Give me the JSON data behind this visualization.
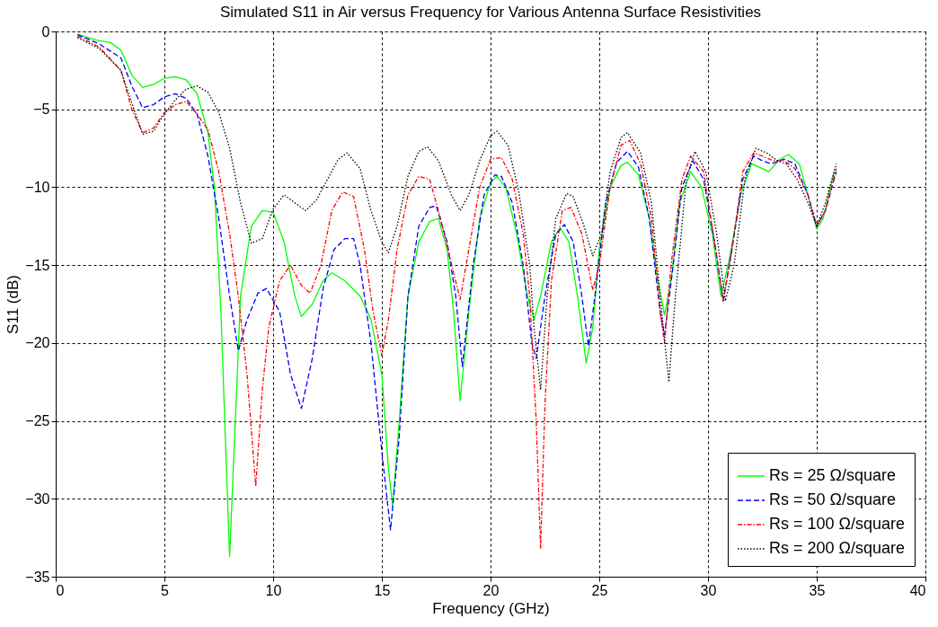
{
  "chart_data": {
    "type": "line",
    "title": "Simulated S11 in Air versus Frequency for Various Antenna Surface Resistivities",
    "xlabel": "Frequency (GHz)",
    "ylabel": "S11 (dB)",
    "xlim": [
      0,
      40
    ],
    "xticks": [
      0,
      5,
      10,
      15,
      20,
      25,
      30,
      35,
      40
    ],
    "ylim": [
      -35,
      0
    ],
    "yticks": [
      -35,
      -30,
      -25,
      -20,
      -15,
      -10,
      -5,
      0
    ],
    "grid": true,
    "legend": "bottom right",
    "marker": "none",
    "series": [
      {
        "name": "Rs = 25 Ω/square",
        "color": "#00ff00",
        "line_style": "solid",
        "x": [
          1,
          2,
          2.5,
          3,
          3.5,
          4,
          4.5,
          5,
          5.5,
          6,
          6.5,
          7,
          7.3,
          7.6,
          7.8,
          8.0,
          8.2,
          8.5,
          9,
          9.5,
          10,
          10.5,
          11,
          11.3,
          11.8,
          12.3,
          12.7,
          13.3,
          14,
          14.5,
          15,
          15.3,
          15.5,
          15.8,
          16.2,
          16.7,
          17.2,
          17.6,
          18,
          18.3,
          18.6,
          19,
          19.5,
          20,
          20.3,
          20.7,
          21.2,
          21.7,
          22,
          22.3,
          22.8,
          23.2,
          23.6,
          24,
          24.4,
          24.7,
          25,
          25.5,
          26,
          26.3,
          26.8,
          27.3,
          27.7,
          28,
          28.3,
          28.7,
          29.2,
          29.7,
          30.2,
          30.6,
          31,
          31.5,
          32,
          32.5,
          32.8,
          33.3,
          33.7,
          34.2,
          34.6,
          35,
          35.3,
          35.8
        ],
        "values": [
          -0.2,
          -0.6,
          -0.7,
          -1.2,
          -2.8,
          -3.6,
          -3.4,
          -3.0,
          -2.9,
          -3.1,
          -4.0,
          -6.5,
          -10,
          -18,
          -26,
          -33.7,
          -27,
          -17,
          -12.5,
          -11.5,
          -11.6,
          -13.5,
          -17,
          -18.3,
          -17.5,
          -16,
          -15.5,
          -16,
          -17,
          -18.5,
          -22,
          -28,
          -30.5,
          -25,
          -17,
          -13.5,
          -12.2,
          -12.0,
          -14,
          -18,
          -23.7,
          -18,
          -12,
          -9.7,
          -9.3,
          -10,
          -13,
          -17,
          -18.5,
          -17,
          -13.5,
          -12.6,
          -13.5,
          -17,
          -21.3,
          -19,
          -14,
          -10,
          -8.6,
          -8.4,
          -9.2,
          -12,
          -16,
          -18.2,
          -16,
          -11,
          -9,
          -10,
          -13,
          -17,
          -14.5,
          -10.5,
          -8.5,
          -8.8,
          -9,
          -8.2,
          -7.9,
          -8.5,
          -10.5,
          -12.7,
          -12,
          -9.0
        ]
      },
      {
        "name": "Rs = 50 Ω/square",
        "color": "#0000ff",
        "line_style": "dashed",
        "x": [
          1,
          2,
          3,
          3.5,
          4,
          4.5,
          5,
          5.5,
          6,
          6.5,
          7,
          7.5,
          8,
          8.4,
          8.8,
          9.3,
          9.7,
          10.3,
          10.8,
          11.3,
          11.8,
          12.3,
          12.8,
          13.3,
          13.7,
          14,
          14.5,
          15,
          15.4,
          15.8,
          16.2,
          16.7,
          17.2,
          17.5,
          18,
          18.4,
          18.7,
          19.2,
          19.7,
          20.2,
          20.5,
          21,
          21.5,
          21.9,
          22.1,
          22.5,
          23,
          23.4,
          23.8,
          24.2,
          24.5,
          24.8,
          25.3,
          25.8,
          26.3,
          26.8,
          27.3,
          27.8,
          28,
          28.4,
          28.8,
          29.3,
          29.8,
          30.3,
          30.7,
          31.1,
          31.6,
          32.1,
          32.5,
          32.9,
          33.5,
          34,
          34.6,
          35,
          35.4,
          35.9
        ],
        "values": [
          -0.2,
          -0.8,
          -1.7,
          -3.5,
          -4.9,
          -4.7,
          -4.2,
          -4.0,
          -4.3,
          -5.3,
          -8,
          -12,
          -17,
          -20.5,
          -18.5,
          -16.8,
          -16.5,
          -18,
          -22,
          -24.2,
          -21,
          -16.5,
          -14,
          -13.3,
          -13.3,
          -15,
          -20,
          -27,
          -32,
          -26,
          -17,
          -12.5,
          -11.3,
          -11.2,
          -13.5,
          -17,
          -21.5,
          -15,
          -10.5,
          -9.2,
          -9.3,
          -11,
          -15,
          -20,
          -21,
          -17,
          -13,
          -12.4,
          -13.5,
          -17,
          -20.2,
          -17,
          -11,
          -8.4,
          -7.7,
          -8.7,
          -12,
          -18,
          -19.5,
          -15,
          -10,
          -8.3,
          -9.5,
          -13.5,
          -17.3,
          -14,
          -9.5,
          -8.0,
          -8.3,
          -8.5,
          -8.2,
          -8.5,
          -10.5,
          -12.5,
          -11.5,
          -9.0
        ]
      },
      {
        "name": "Rs = 100 Ω/square",
        "color": "#ff0000",
        "line_style": "dashdot",
        "x": [
          1,
          2,
          3,
          3.5,
          4,
          4.5,
          5,
          5.5,
          6,
          6.5,
          7,
          7.5,
          8,
          8.4,
          8.8,
          9.2,
          9.5,
          9.8,
          10.3,
          10.8,
          11.3,
          11.7,
          12.2,
          12.7,
          13.2,
          13.7,
          14.2,
          14.6,
          15,
          15.3,
          15.7,
          16.2,
          16.7,
          17.2,
          17.7,
          18.3,
          18.6,
          19,
          19.5,
          20,
          20.5,
          21,
          21.5,
          21.8,
          22.1,
          22.3,
          22.5,
          22.8,
          23.3,
          23.7,
          24.2,
          24.7,
          25,
          25.5,
          26,
          26.4,
          26.9,
          27.4,
          27.8,
          28.0,
          28.3,
          28.8,
          29.2,
          29.8,
          30.3,
          30.7,
          31.1,
          31.6,
          32.1,
          32.5,
          33,
          33.5,
          34,
          34.6,
          35,
          35.4,
          35.9
        ],
        "values": [
          -0.3,
          -1.0,
          -2.5,
          -5,
          -6.5,
          -6.2,
          -5.2,
          -4.7,
          -4.5,
          -5.3,
          -6.3,
          -9,
          -13,
          -17,
          -22,
          -29.2,
          -23,
          -19,
          -16,
          -15,
          -16.3,
          -16.8,
          -15,
          -11.5,
          -10.3,
          -10.6,
          -14,
          -18,
          -20.8,
          -18.5,
          -14,
          -10.5,
          -9.3,
          -9.5,
          -12,
          -15.5,
          -17.2,
          -14,
          -10,
          -8.2,
          -8.1,
          -9.5,
          -13,
          -17,
          -25,
          -33.2,
          -24,
          -16,
          -11.5,
          -11.3,
          -13,
          -16.6,
          -15,
          -10,
          -7.3,
          -7.0,
          -8.5,
          -12,
          -18,
          -20,
          -15,
          -9.5,
          -8.0,
          -9,
          -13.5,
          -17.3,
          -14,
          -9.0,
          -7.8,
          -8.0,
          -8.3,
          -8.3,
          -8.8,
          -10.5,
          -12.5,
          -11.5,
          -8.8
        ]
      },
      {
        "name": "Rs = 200 Ω/square",
        "color": "#000000",
        "line_style": "dotted",
        "x": [
          1,
          2,
          3,
          3.5,
          4,
          4.5,
          5,
          5.5,
          6,
          6.5,
          7,
          7.5,
          8,
          8.5,
          9,
          9.5,
          10,
          10.5,
          11,
          11.5,
          12,
          12.5,
          13,
          13.4,
          14,
          14.5,
          15,
          15.3,
          15.7,
          16.2,
          16.7,
          17.1,
          17.6,
          18.2,
          18.6,
          19,
          19.5,
          20,
          20.3,
          20.8,
          21.3,
          21.8,
          22,
          22.3,
          22.6,
          23,
          23.5,
          23.8,
          24.3,
          24.7,
          25.1,
          25.5,
          26,
          26.3,
          26.9,
          27.4,
          27.8,
          28.2,
          28.5,
          29,
          29.4,
          29.9,
          30.4,
          30.8,
          31.2,
          31.7,
          32.2,
          32.7,
          33.2,
          33.6,
          34.1,
          34.6,
          35,
          35.4,
          35.9
        ],
        "values": [
          -0.4,
          -1.1,
          -2.5,
          -4.6,
          -6.6,
          -6.4,
          -5.3,
          -4.4,
          -3.7,
          -3.5,
          -3.9,
          -5.2,
          -7.5,
          -11,
          -13.6,
          -13.3,
          -11.4,
          -10.5,
          -11,
          -11.5,
          -10.8,
          -9.5,
          -8.2,
          -7.8,
          -8.8,
          -11.5,
          -13.5,
          -14.2,
          -12.5,
          -9.3,
          -7.7,
          -7.4,
          -8.3,
          -10.5,
          -11.5,
          -10.5,
          -8.3,
          -6.7,
          -6.4,
          -7.3,
          -10.3,
          -15,
          -19,
          -23,
          -17,
          -12,
          -10.4,
          -10.6,
          -12.5,
          -14.4,
          -13,
          -9,
          -6.8,
          -6.5,
          -7.8,
          -11,
          -17,
          -22.5,
          -17,
          -9.5,
          -7.7,
          -9,
          -13,
          -17.3,
          -15,
          -9.5,
          -7.5,
          -7.8,
          -8.3,
          -8.5,
          -9.5,
          -11,
          -12.5,
          -11,
          -8.5
        ]
      }
    ]
  }
}
